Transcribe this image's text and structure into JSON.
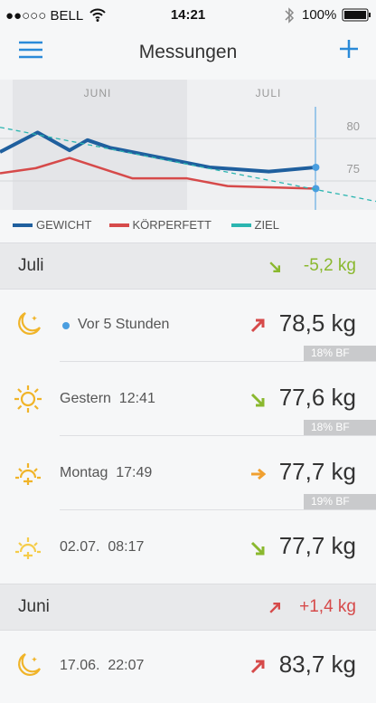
{
  "status_bar": {
    "carrier": "●●○○○ BELL",
    "time": "14:21",
    "battery": "100%"
  },
  "nav": {
    "title": "Messungen"
  },
  "chart": {
    "type": "line",
    "months": [
      "JUNI",
      "JULI"
    ],
    "xlim": [
      0,
      40
    ],
    "ylim": [
      71.6,
      86.9
    ],
    "yticks": [
      80,
      75
    ],
    "grid": true,
    "series": [
      {
        "name": "GEWICHT",
        "color": "#1f5f9e",
        "x": [
          0,
          4,
          7.4,
          9.3,
          11.7,
          22.3,
          28.6,
          33.6
        ],
        "values": [
          78.4,
          80.7,
          78.6,
          79.8,
          78.9,
          76.6,
          76.1,
          76.6
        ]
      },
      {
        "name": "KÖRPERFETT",
        "color": "#d64a4a",
        "x": [
          0,
          3.8,
          7.4,
          14.1,
          19.9,
          24.2,
          33.6
        ],
        "values": [
          75.9,
          76.5,
          77.7,
          75.3,
          75.3,
          74.4,
          74.1
        ]
      },
      {
        "name": "ZIEL",
        "color": "#2bb5b0",
        "dashed": true,
        "x": [
          0,
          40
        ],
        "values": [
          81.3,
          72.6
        ]
      }
    ]
  },
  "sections": [
    {
      "title": "Juli",
      "change": "-5,2 kg",
      "rows": [
        {
          "time": "Vor 5 Stunden",
          "weight": "78,5 kg",
          "bf": "18% BF"
        },
        {
          "time": "Gestern  12:41",
          "weight": "77,6 kg",
          "bf": "18% BF"
        },
        {
          "time": "Montag  17:49",
          "weight": "77,7 kg",
          "bf": "19% BF"
        },
        {
          "time": "02.07.  08:17",
          "weight": "77,7 kg"
        }
      ]
    },
    {
      "title": "Juni",
      "change": "+1,4 kg",
      "rows": [
        {
          "time": "17.06.  22:07",
          "weight": "83,7 kg"
        }
      ]
    }
  ]
}
